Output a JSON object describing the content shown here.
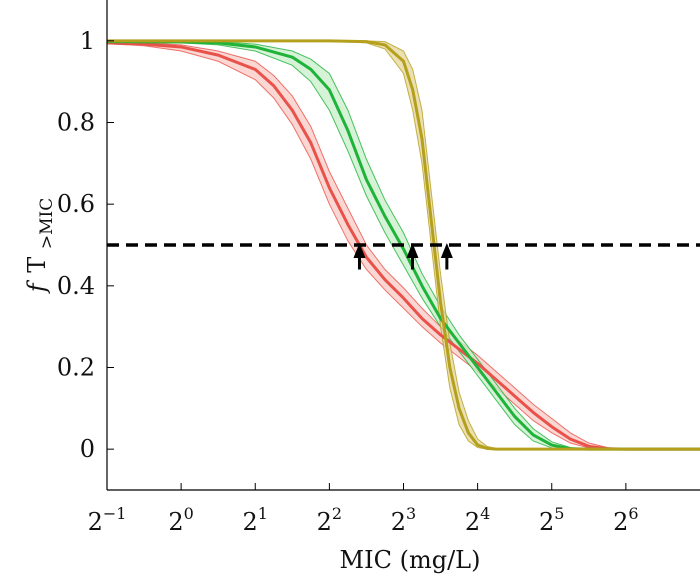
{
  "chart_data": {
    "type": "line",
    "xscale": "log2",
    "xlim": [
      0.5,
      128
    ],
    "ylim": [
      -0.1,
      1.1
    ],
    "grid": false,
    "xlabel": "MIC (mg/L)",
    "ylabel_main": "T",
    "ylabel_prefix": "f",
    "ylabel_sub": ">MIC",
    "xticks": [
      {
        "value": 0.5,
        "base": "2",
        "exp": "−1"
      },
      {
        "value": 1,
        "base": "2",
        "exp": "0"
      },
      {
        "value": 2,
        "base": "2",
        "exp": "1"
      },
      {
        "value": 4,
        "base": "2",
        "exp": "2"
      },
      {
        "value": 8,
        "base": "2",
        "exp": "3"
      },
      {
        "value": 16,
        "base": "2",
        "exp": "4"
      },
      {
        "value": 32,
        "base": "2",
        "exp": "5"
      },
      {
        "value": 64,
        "base": "2",
        "exp": "6"
      }
    ],
    "yticks": [
      {
        "value": 0,
        "label": "0"
      },
      {
        "value": 0.2,
        "label": "0.2"
      },
      {
        "value": 0.4,
        "label": "0.4"
      },
      {
        "value": 0.6,
        "label": "0.6"
      },
      {
        "value": 0.8,
        "label": "0.8"
      },
      {
        "value": 1,
        "label": "1"
      }
    ],
    "threshold": {
      "y": 0.5,
      "style": "dashed",
      "color": "#000000"
    },
    "series": [
      {
        "color": "#e8524a",
        "band_color": "#f9c9c6",
        "x": [
          0.5,
          0.707,
          1,
          1.414,
          2,
          2.378,
          2.828,
          3.364,
          4,
          4.757,
          5.657,
          6.727,
          8,
          9.514,
          11.31,
          13.45,
          16,
          19.03,
          22.63,
          26.91,
          32,
          38.05,
          45.25,
          53.82,
          64,
          128
        ],
        "y": [
          0.995,
          0.992,
          0.985,
          0.965,
          0.93,
          0.89,
          0.83,
          0.75,
          0.64,
          0.55,
          0.47,
          0.415,
          0.37,
          0.32,
          0.28,
          0.245,
          0.21,
          0.17,
          0.13,
          0.09,
          0.055,
          0.025,
          0.007,
          0.001,
          0,
          0
        ],
        "lower": [
          0.993,
          0.988,
          0.975,
          0.95,
          0.905,
          0.86,
          0.795,
          0.71,
          0.6,
          0.51,
          0.44,
          0.39,
          0.345,
          0.3,
          0.26,
          0.225,
          0.19,
          0.15,
          0.11,
          0.07,
          0.04,
          0.015,
          0.003,
          0,
          0,
          0
        ],
        "upper": [
          0.997,
          0.995,
          0.99,
          0.975,
          0.95,
          0.915,
          0.865,
          0.79,
          0.68,
          0.59,
          0.5,
          0.44,
          0.395,
          0.345,
          0.3,
          0.265,
          0.23,
          0.19,
          0.15,
          0.11,
          0.075,
          0.04,
          0.015,
          0.004,
          0,
          0
        ]
      },
      {
        "color": "#1fb33a",
        "band_color": "#c8edc9",
        "x": [
          0.5,
          1,
          1.414,
          2,
          2.828,
          3.364,
          4,
          4.757,
          5.657,
          6.727,
          8,
          9.514,
          11.31,
          13.45,
          16,
          19.03,
          22.63,
          26.91,
          32,
          38.05,
          45.25,
          128
        ],
        "y": [
          0.998,
          0.997,
          0.995,
          0.985,
          0.96,
          0.93,
          0.88,
          0.78,
          0.66,
          0.57,
          0.49,
          0.4,
          0.32,
          0.26,
          0.2,
          0.14,
          0.08,
          0.035,
          0.01,
          0.001,
          0,
          0
        ],
        "lower": [
          0.997,
          0.995,
          0.99,
          0.975,
          0.94,
          0.9,
          0.83,
          0.73,
          0.62,
          0.53,
          0.45,
          0.37,
          0.3,
          0.24,
          0.18,
          0.12,
          0.06,
          0.02,
          0.003,
          0,
          0,
          0
        ],
        "upper": [
          0.999,
          0.999,
          0.998,
          0.992,
          0.975,
          0.955,
          0.92,
          0.83,
          0.71,
          0.61,
          0.53,
          0.43,
          0.35,
          0.28,
          0.22,
          0.16,
          0.1,
          0.05,
          0.018,
          0.004,
          0,
          0
        ]
      },
      {
        "color": "#b5a01e",
        "band_color": "#e3d69a",
        "x": [
          0.5,
          2,
          4,
          5.657,
          6.727,
          8,
          8.72,
          9.51,
          10.37,
          11.31,
          12.34,
          13.45,
          14.67,
          16,
          17.45,
          19.03,
          22.63,
          128
        ],
        "y": [
          1,
          1,
          1,
          0.998,
          0.99,
          0.95,
          0.88,
          0.76,
          0.56,
          0.36,
          0.2,
          0.1,
          0.04,
          0.01,
          0.002,
          0,
          0,
          0
        ],
        "lower": [
          0.999,
          0.999,
          0.999,
          0.995,
          0.98,
          0.92,
          0.83,
          0.7,
          0.5,
          0.3,
          0.15,
          0.06,
          0.02,
          0.004,
          0,
          0,
          0,
          0
        ],
        "upper": [
          1,
          1,
          1,
          1,
          0.998,
          0.975,
          0.93,
          0.83,
          0.63,
          0.43,
          0.26,
          0.14,
          0.07,
          0.025,
          0.007,
          0.002,
          0,
          0
        ]
      }
    ],
    "annotations": [
      {
        "type": "arrow",
        "x": 5.3,
        "y_from": 0.44,
        "y_to": 0.505
      },
      {
        "type": "arrow",
        "x": 8.7,
        "y_from": 0.44,
        "y_to": 0.505
      },
      {
        "type": "arrow",
        "x": 12.0,
        "y_from": 0.44,
        "y_to": 0.505
      }
    ]
  }
}
